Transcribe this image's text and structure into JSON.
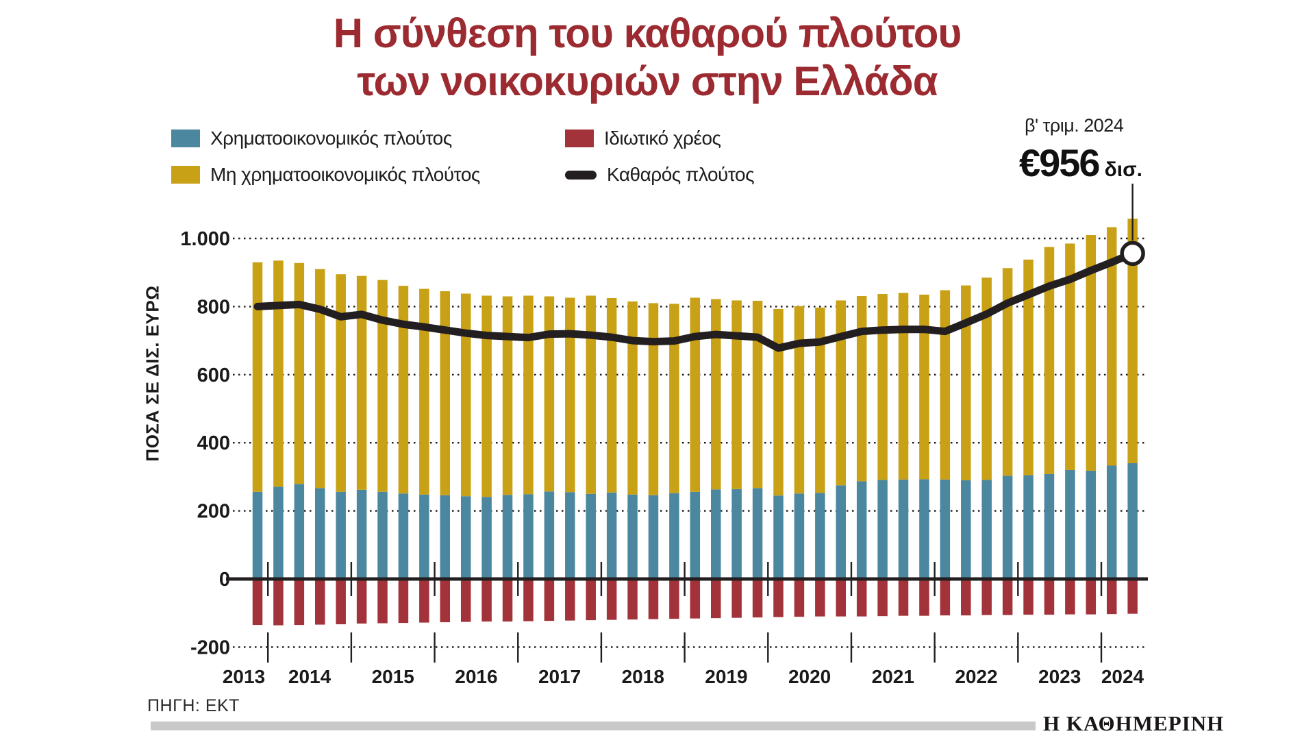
{
  "title": {
    "line1": "Η σύνθεση του καθαρού πλούτου",
    "line2": "των νοικοκυριών στην Ελλάδα"
  },
  "legend": {
    "items": [
      {
        "label": "Χρηματοοικονομικός πλούτος",
        "color": "#4c87a0",
        "swatch": "square"
      },
      {
        "label": "Μη χρηματοοικονομικός πλούτος",
        "color": "#c9a116",
        "swatch": "square"
      },
      {
        "label": "Ιδιωτικό χρέος",
        "color": "#a3333a",
        "swatch": "square"
      },
      {
        "label": "Καθαρός πλούτος",
        "color": "#231f20",
        "swatch": "line"
      }
    ]
  },
  "callout": {
    "period": "β' τριμ. 2024",
    "value": "€956",
    "unit": "δισ."
  },
  "source": "ΠΗΓΗ: ΕΚΤ",
  "logo": "Η ΚΑΘΗΜΕΡΙΝΗ",
  "colors": {
    "title": "#9c2b31",
    "financial": "#4c87a0",
    "non_financial": "#c9a116",
    "debt": "#a3333a",
    "net_line": "#231f20",
    "footer_bar": "#c9c9c9"
  },
  "chart_data": {
    "type": "bar",
    "stacked": true,
    "grid": "dotted-horizontal",
    "legend_position": "top-left",
    "ylabel": "ΠΟΣΑ ΣΕ ΔΙΣ. ΕΥΡΩ",
    "ylim": [
      -200,
      1000
    ],
    "y_ticks": [
      {
        "value": 1000,
        "label": "1.000"
      },
      {
        "value": 800,
        "label": "800"
      },
      {
        "value": 600,
        "label": "600"
      },
      {
        "value": 400,
        "label": "400"
      },
      {
        "value": 200,
        "label": "200"
      },
      {
        "value": 0,
        "label": "0"
      },
      {
        "value": -200,
        "label": "-200"
      }
    ],
    "x_years": [
      "2013",
      "2014",
      "2015",
      "2016",
      "2017",
      "2018",
      "2019",
      "2020",
      "2021",
      "2022",
      "2023",
      "2024"
    ],
    "quarters": [
      "Δ' τριμ. 2013",
      "Α' τριμ. 2014",
      "Β' τριμ. 2014",
      "Γ' τριμ. 2014",
      "Δ' τριμ. 2014",
      "Α' τριμ. 2015",
      "Β' τριμ. 2015",
      "Γ' τριμ. 2015",
      "Δ' τριμ. 2015",
      "Α' τριμ. 2016",
      "Β' τριμ. 2016",
      "Γ' τριμ. 2016",
      "Δ' τριμ. 2016",
      "Α' τριμ. 2017",
      "Β' τριμ. 2017",
      "Γ' τριμ. 2017",
      "Δ' τριμ. 2017",
      "Α' τριμ. 2018",
      "Β' τριμ. 2018",
      "Γ' τριμ. 2018",
      "Δ' τριμ. 2018",
      "Α' τριμ. 2019",
      "Β' τριμ. 2019",
      "Γ' τριμ. 2019",
      "Δ' τριμ. 2019",
      "Α' τριμ. 2020",
      "Β' τριμ. 2020",
      "Γ' τριμ. 2020",
      "Δ' τριμ. 2020",
      "Α' τριμ. 2021",
      "Β' τριμ. 2021",
      "Γ' τριμ. 2021",
      "Δ' τριμ. 2021",
      "Α' τριμ. 2022",
      "Β' τριμ. 2022",
      "Γ' τριμ. 2022",
      "Δ' τριμ. 2022",
      "Α' τριμ. 2023",
      "Β' τριμ. 2023",
      "Γ' τριμ. 2023",
      "Δ' τριμ. 2023",
      "Α' τριμ. 2024",
      "Β' τριμ. 2024"
    ],
    "series": [
      {
        "name": "Χρηματοοικονομικός πλούτος",
        "type": "bar-stack",
        "color": "#4c87a0",
        "values": [
          256,
          271,
          279,
          267,
          256,
          262,
          256,
          251,
          248,
          246,
          243,
          241,
          247,
          249,
          257,
          255,
          250,
          254,
          248,
          246,
          252,
          256,
          263,
          264,
          267,
          245,
          251,
          253,
          275,
          287,
          291,
          292,
          293,
          292,
          290,
          291,
          303,
          305,
          308,
          320,
          318,
          333,
          340
        ]
      },
      {
        "name": "Μη χρηματοοικονομικός πλούτος",
        "type": "bar-stack",
        "color": "#c9a116",
        "values": [
          674,
          664,
          649,
          643,
          639,
          628,
          622,
          610,
          604,
          599,
          595,
          591,
          583,
          583,
          573,
          571,
          582,
          571,
          567,
          564,
          556,
          570,
          559,
          554,
          550,
          548,
          550,
          544,
          543,
          544,
          546,
          548,
          542,
          556,
          572,
          594,
          610,
          633,
          667,
          665,
          692,
          700,
          718
        ]
      },
      {
        "name": "Ιδιωτικό χρέος",
        "type": "bar",
        "color": "#a3333a",
        "values": [
          -135,
          -136,
          -135,
          -134,
          -133,
          -131,
          -130,
          -129,
          -128,
          -127,
          -126,
          -125,
          -125,
          -124,
          -123,
          -122,
          -121,
          -120,
          -119,
          -118,
          -117,
          -116,
          -115,
          -114,
          -113,
          -112,
          -111,
          -110,
          -110,
          -110,
          -109,
          -108,
          -108,
          -107,
          -107,
          -106,
          -106,
          -105,
          -105,
          -104,
          -104,
          -103,
          -102
        ]
      },
      {
        "name": "Καθαρός πλούτος",
        "type": "line",
        "color": "#231f20",
        "values": [
          800,
          803,
          806,
          792,
          770,
          777,
          760,
          748,
          740,
          731,
          722,
          715,
          712,
          709,
          719,
          720,
          716,
          710,
          700,
          697,
          699,
          712,
          718,
          714,
          710,
          678,
          692,
          696,
          712,
          727,
          731,
          733,
          733,
          727,
          752,
          778,
          810,
          835,
          860,
          880,
          906,
          930,
          956
        ]
      }
    ],
    "highlight": {
      "quarter": "Β' τριμ. 2024",
      "net_value": 956
    }
  }
}
